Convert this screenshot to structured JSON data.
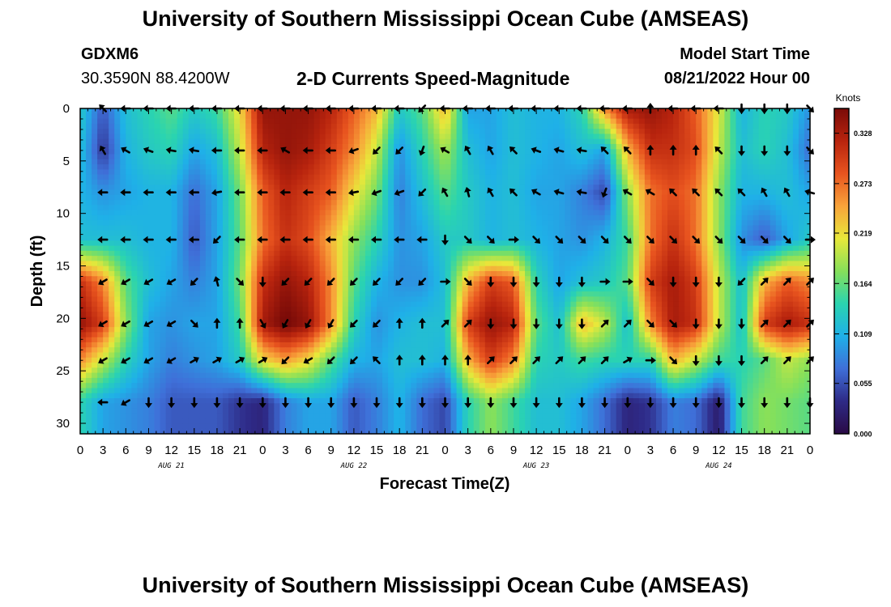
{
  "header": {
    "title": "University of Southern Mississippi Ocean Cube (AMSEAS)",
    "station": "GDXM6",
    "coordinates": "30.3590N  88.4200W",
    "plot_title": "2-D Currents Speed-Magnitude",
    "model_start_label": "Model Start Time",
    "model_start_value": "08/21/2022 Hour 00"
  },
  "footer": {
    "title": "University of Southern Mississippi Ocean Cube (AMSEAS)"
  },
  "colors": {
    "ramp": [
      "#2a0a45",
      "#2e2a86",
      "#3f6fd8",
      "#1fb0e8",
      "#2ad4b0",
      "#86e05a",
      "#e8e83a",
      "#f8a33a",
      "#e8541f",
      "#b8240e",
      "#7a0b08"
    ],
    "frame": "#000000",
    "arrow": "#000000"
  },
  "chart_data": {
    "type": "heatmap",
    "title": "2-D Currents Speed-Magnitude",
    "xlabel": "Forecast Time(Z)",
    "ylabel": "Depth (ft)",
    "x_hours": [
      0,
      3,
      6,
      9,
      12,
      15,
      18,
      21,
      24,
      27,
      30,
      33,
      36,
      39,
      42,
      45,
      48,
      51,
      54,
      57,
      60,
      63,
      66,
      69,
      72,
      75,
      78,
      81,
      84,
      87,
      90,
      93,
      96
    ],
    "x_range_hours": [
      0,
      96
    ],
    "x_tick_labels": [
      "0",
      "3",
      "6",
      "9",
      "12",
      "15",
      "18",
      "21",
      "0",
      "3",
      "6",
      "9",
      "12",
      "15",
      "18",
      "21",
      "0",
      "3",
      "6",
      "9",
      "12",
      "15",
      "18",
      "21",
      "0",
      "3",
      "6",
      "9",
      "12",
      "15",
      "18",
      "21",
      "0"
    ],
    "day_labels": [
      {
        "label": "AUG 21",
        "hour": 12
      },
      {
        "label": "AUG 22",
        "hour": 36
      },
      {
        "label": "AUG 23",
        "hour": 60
      },
      {
        "label": "AUG 24",
        "hour": 84
      }
    ],
    "y_ticks": [
      0,
      5,
      10,
      15,
      20,
      25,
      30
    ],
    "y_tick_labels": [
      "0",
      "5",
      "10",
      "15",
      "20",
      "25",
      "30"
    ],
    "y_range": [
      0,
      31
    ],
    "y_inverted": true,
    "depth_levels": [
      0,
      4,
      8,
      12.5,
      16.5,
      20.5,
      24,
      28
    ],
    "colorbar": {
      "unit": "Knots",
      "range": [
        0,
        0.355
      ],
      "ticks": [
        0.0,
        0.055,
        0.109,
        0.164,
        0.219,
        0.273,
        0.328
      ],
      "tick_labels": [
        "0.000",
        "0.055",
        "0.109",
        "0.164",
        "0.219",
        "0.273",
        "0.328"
      ]
    },
    "speed_knots": [
      [
        0.13,
        0.06,
        0.12,
        0.14,
        0.16,
        0.13,
        0.15,
        0.22,
        0.34,
        0.34,
        0.34,
        0.32,
        0.28,
        0.24,
        0.13,
        0.16,
        0.24,
        0.1,
        0.1,
        0.12,
        0.11,
        0.11,
        0.14,
        0.26,
        0.33,
        0.34,
        0.32,
        0.28,
        0.21,
        0.11,
        0.14,
        0.13,
        0.09
      ],
      [
        0.12,
        0.04,
        0.11,
        0.13,
        0.14,
        0.1,
        0.12,
        0.2,
        0.32,
        0.34,
        0.33,
        0.3,
        0.26,
        0.2,
        0.09,
        0.14,
        0.19,
        0.12,
        0.1,
        0.12,
        0.11,
        0.1,
        0.12,
        0.1,
        0.24,
        0.31,
        0.31,
        0.29,
        0.2,
        0.12,
        0.14,
        0.12,
        0.07
      ],
      [
        0.11,
        0.09,
        0.1,
        0.11,
        0.11,
        0.07,
        0.1,
        0.17,
        0.28,
        0.32,
        0.3,
        0.28,
        0.22,
        0.17,
        0.08,
        0.12,
        0.16,
        0.13,
        0.11,
        0.12,
        0.1,
        0.1,
        0.08,
        0.05,
        0.18,
        0.27,
        0.29,
        0.27,
        0.18,
        0.11,
        0.11,
        0.12,
        0.1
      ],
      [
        0.12,
        0.12,
        0.12,
        0.11,
        0.11,
        0.06,
        0.1,
        0.16,
        0.27,
        0.31,
        0.29,
        0.24,
        0.18,
        0.14,
        0.09,
        0.1,
        0.13,
        0.13,
        0.11,
        0.12,
        0.11,
        0.1,
        0.09,
        0.11,
        0.15,
        0.27,
        0.31,
        0.27,
        0.18,
        0.09,
        0.06,
        0.1,
        0.13
      ],
      [
        0.31,
        0.26,
        0.16,
        0.12,
        0.1,
        0.08,
        0.1,
        0.17,
        0.31,
        0.34,
        0.32,
        0.26,
        0.16,
        0.11,
        0.09,
        0.09,
        0.12,
        0.24,
        0.3,
        0.28,
        0.14,
        0.1,
        0.12,
        0.13,
        0.16,
        0.3,
        0.33,
        0.3,
        0.2,
        0.12,
        0.24,
        0.28,
        0.26
      ],
      [
        0.34,
        0.3,
        0.18,
        0.1,
        0.09,
        0.1,
        0.1,
        0.15,
        0.33,
        0.36,
        0.34,
        0.26,
        0.14,
        0.09,
        0.11,
        0.12,
        0.12,
        0.3,
        0.34,
        0.32,
        0.16,
        0.12,
        0.24,
        0.2,
        0.12,
        0.26,
        0.33,
        0.31,
        0.2,
        0.12,
        0.3,
        0.33,
        0.31
      ],
      [
        0.26,
        0.2,
        0.14,
        0.1,
        0.08,
        0.09,
        0.1,
        0.13,
        0.22,
        0.25,
        0.22,
        0.16,
        0.11,
        0.1,
        0.12,
        0.12,
        0.11,
        0.24,
        0.3,
        0.26,
        0.14,
        0.13,
        0.15,
        0.14,
        0.14,
        0.14,
        0.24,
        0.2,
        0.15,
        0.14,
        0.16,
        0.2,
        0.18
      ],
      [
        0.14,
        0.1,
        0.09,
        0.08,
        0.06,
        0.06,
        0.06,
        0.04,
        0.03,
        0.08,
        0.1,
        0.1,
        0.06,
        0.08,
        0.11,
        0.07,
        0.05,
        0.14,
        0.18,
        0.15,
        0.12,
        0.12,
        0.1,
        0.07,
        0.03,
        0.04,
        0.08,
        0.07,
        0.02,
        0.15,
        0.18,
        0.17,
        0.16
      ]
    ],
    "current_direction_deg": [
      [
        null,
        315,
        270,
        270,
        270,
        270,
        270,
        270,
        270,
        270,
        270,
        270,
        270,
        270,
        270,
        225,
        270,
        270,
        270,
        270,
        270,
        270,
        270,
        270,
        270,
        0,
        270,
        270,
        270,
        180,
        180,
        180,
        135
      ],
      [
        null,
        330,
        300,
        290,
        280,
        280,
        270,
        270,
        270,
        300,
        270,
        270,
        250,
        225,
        225,
        200,
        300,
        330,
        330,
        315,
        290,
        285,
        280,
        315,
        315,
        0,
        0,
        0,
        315,
        180,
        180,
        180,
        135
      ],
      [
        null,
        270,
        270,
        270,
        270,
        270,
        260,
        270,
        270,
        270,
        270,
        270,
        260,
        250,
        250,
        225,
        330,
        345,
        330,
        315,
        300,
        285,
        280,
        200,
        300,
        300,
        315,
        315,
        315,
        315,
        330,
        330,
        285
      ],
      [
        null,
        270,
        270,
        270,
        270,
        270,
        225,
        270,
        270,
        270,
        270,
        270,
        270,
        270,
        270,
        270,
        180,
        135,
        135,
        90,
        135,
        135,
        135,
        135,
        135,
        135,
        135,
        135,
        135,
        135,
        135,
        135,
        90
      ],
      [
        null,
        240,
        240,
        240,
        240,
        225,
        345,
        135,
        180,
        225,
        225,
        225,
        225,
        225,
        225,
        225,
        90,
        135,
        180,
        180,
        180,
        180,
        180,
        90,
        90,
        135,
        180,
        180,
        180,
        225,
        45,
        45,
        45
      ],
      [
        null,
        240,
        240,
        240,
        240,
        135,
        0,
        0,
        150,
        210,
        210,
        210,
        225,
        225,
        0,
        0,
        45,
        45,
        180,
        180,
        180,
        180,
        180,
        45,
        45,
        135,
        135,
        180,
        180,
        180,
        45,
        45,
        45
      ],
      [
        null,
        240,
        240,
        240,
        240,
        60,
        60,
        60,
        60,
        225,
        240,
        225,
        225,
        315,
        0,
        0,
        0,
        0,
        45,
        45,
        45,
        45,
        45,
        45,
        60,
        90,
        135,
        180,
        180,
        180,
        45,
        45,
        45
      ],
      [
        null,
        270,
        240,
        180,
        180,
        180,
        180,
        180,
        180,
        180,
        180,
        180,
        180,
        180,
        180,
        180,
        180,
        180,
        180,
        180,
        180,
        180,
        180,
        180,
        180,
        180,
        180,
        180,
        180,
        180,
        180,
        180,
        180
      ]
    ]
  }
}
